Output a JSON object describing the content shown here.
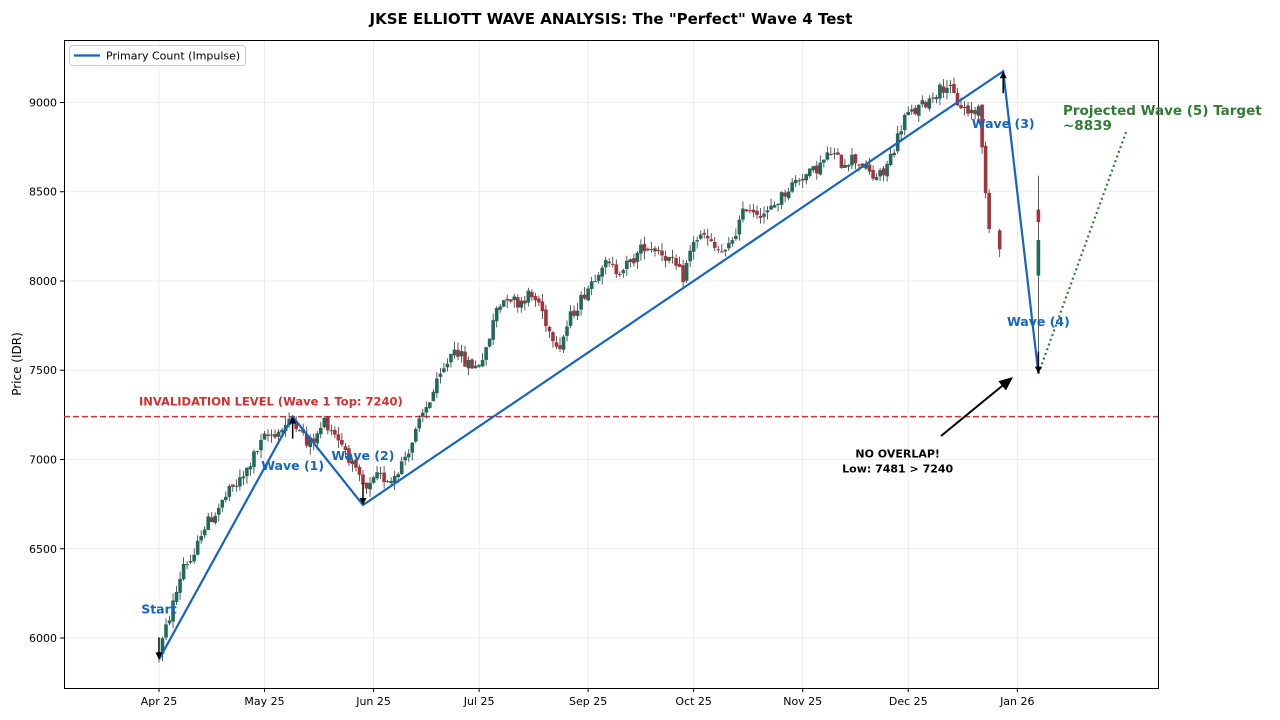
{
  "chart_data": {
    "type": "candlestick",
    "title": "JKSE ELLIOTT WAVE ANALYSIS: The \"Perfect\" Wave 4 Test",
    "xlabel": "",
    "ylabel": "Price (IDR)",
    "ylim": [
      5720,
      9350
    ],
    "xlim": [
      -27,
      284
    ],
    "y_ticks": [
      6000,
      6500,
      7000,
      7500,
      8000,
      8500,
      9000
    ],
    "x_ticks": [
      {
        "label": "Apr 25",
        "day": 0
      },
      {
        "label": "May 25",
        "day": 30
      },
      {
        "label": "Jun 25",
        "day": 61
      },
      {
        "label": "Jul 25",
        "day": 91
      },
      {
        "label": "Sep 25",
        "day": 122
      },
      {
        "label": "Oct 25",
        "day": 152
      },
      {
        "label": "Nov 25",
        "day": 183
      },
      {
        "label": "Dec 25",
        "day": 213
      },
      {
        "label": "Jan 26",
        "day": 244
      }
    ],
    "grid": true,
    "legend": {
      "position": "top-left",
      "entries": [
        "Primary Count (Impulse)"
      ]
    },
    "primary_count": [
      {
        "day": 0,
        "price": 5880
      },
      {
        "day": 38,
        "price": 7240
      },
      {
        "day": 58,
        "price": 6745
      },
      {
        "day": 240,
        "price": 9175
      },
      {
        "day": 250,
        "price": 7481
      }
    ],
    "projection": [
      {
        "day": 250,
        "price": 7481
      },
      {
        "day": 275,
        "price": 8839
      }
    ],
    "invalidation_level": 7240,
    "wave_labels": [
      {
        "text": "Start",
        "day": 0,
        "price": 6160
      },
      {
        "text": "Wave (1)",
        "day": 38,
        "price": 6965
      },
      {
        "text": "Wave (2)",
        "day": 58,
        "price": 7020
      },
      {
        "text": "Wave (3)",
        "day": 240,
        "price": 8880
      },
      {
        "text": "Wave (4)",
        "day": 250,
        "price": 7770
      }
    ],
    "invalidation_label": "INVALIDATION LEVEL (Wave 1 Top: 7240)",
    "annotation": {
      "line1": "NO OVERLAP!",
      "line2": "Low: 7481 > 7240",
      "day": 210,
      "price": 7010
    },
    "target_label": {
      "line1": "Projected Wave (5) Target",
      "line2": "~8839"
    },
    "candle_waypoints": [
      [
        0,
        5920
      ],
      [
        3,
        6120
      ],
      [
        5,
        6260
      ],
      [
        7,
        6420
      ],
      [
        10,
        6440
      ],
      [
        12,
        6600
      ],
      [
        16,
        6700
      ],
      [
        20,
        6820
      ],
      [
        24,
        6900
      ],
      [
        27,
        7020
      ],
      [
        30,
        7120
      ],
      [
        34,
        7160
      ],
      [
        38,
        7220
      ],
      [
        40,
        7190
      ],
      [
        42,
        7080
      ],
      [
        45,
        7130
      ],
      [
        47,
        7220
      ],
      [
        50,
        7150
      ],
      [
        53,
        7060
      ],
      [
        56,
        6920
      ],
      [
        59,
        6820
      ],
      [
        62,
        6900
      ],
      [
        66,
        6890
      ],
      [
        69,
        6980
      ],
      [
        72,
        7100
      ],
      [
        75,
        7250
      ],
      [
        78,
        7380
      ],
      [
        81,
        7500
      ],
      [
        84,
        7640
      ],
      [
        87,
        7540
      ],
      [
        90,
        7520
      ],
      [
        93,
        7600
      ],
      [
        96,
        7850
      ],
      [
        99,
        7920
      ],
      [
        102,
        7880
      ],
      [
        105,
        7920
      ],
      [
        108,
        7880
      ],
      [
        111,
        7720
      ],
      [
        114,
        7640
      ],
      [
        117,
        7800
      ],
      [
        120,
        7900
      ],
      [
        123,
        8000
      ],
      [
        126,
        8100
      ],
      [
        130,
        8060
      ],
      [
        134,
        8100
      ],
      [
        138,
        8200
      ],
      [
        142,
        8180
      ],
      [
        146,
        8100
      ],
      [
        149,
        8020
      ],
      [
        152,
        8230
      ],
      [
        155,
        8250
      ],
      [
        158,
        8180
      ],
      [
        161,
        8150
      ],
      [
        164,
        8280
      ],
      [
        167,
        8420
      ],
      [
        170,
        8390
      ],
      [
        173,
        8380
      ],
      [
        176,
        8450
      ],
      [
        179,
        8520
      ],
      [
        182,
        8580
      ],
      [
        185,
        8600
      ],
      [
        188,
        8650
      ],
      [
        191,
        8720
      ],
      [
        194,
        8660
      ],
      [
        197,
        8690
      ],
      [
        200,
        8650
      ],
      [
        203,
        8580
      ],
      [
        206,
        8600
      ],
      [
        209,
        8750
      ],
      [
        212,
        8920
      ],
      [
        215,
        8950
      ],
      [
        218,
        9000
      ],
      [
        221,
        9060
      ],
      [
        224,
        9100
      ],
      [
        227,
        9000
      ],
      [
        230,
        8950
      ],
      [
        233,
        8960
      ],
      [
        236,
        8300
      ],
      [
        239,
        8210
      ]
    ]
  }
}
